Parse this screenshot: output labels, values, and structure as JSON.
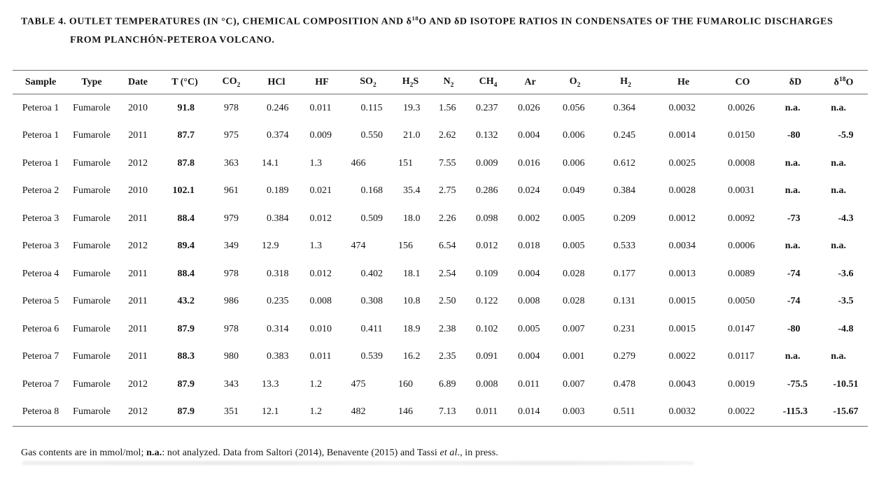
{
  "title": {
    "line1": "TABLE 4. OUTLET TEMPERATURES (IN °C), CHEMICAL COMPOSITION AND δ^{18}O AND δD ISOTOPE RATIOS IN CONDENSATES OF THE FUMAROLIC DISCHARGES",
    "line2": "FROM PLANCHÓN-PETEROA VOLCANO."
  },
  "table": {
    "columns": [
      {
        "key": "sample",
        "label": "Sample",
        "type": "text",
        "align": "left"
      },
      {
        "key": "type",
        "label": "Type",
        "type": "text"
      },
      {
        "key": "date",
        "label": "Date",
        "type": "text"
      },
      {
        "key": "temperature",
        "label": "T (°C)",
        "type": "num",
        "bold": true
      },
      {
        "key": "co2",
        "label": "CO_{2}",
        "type": "num"
      },
      {
        "key": "hcl",
        "label": "HCl",
        "type": "num"
      },
      {
        "key": "hf",
        "label": "HF",
        "type": "num"
      },
      {
        "key": "so2",
        "label": "SO_{2}",
        "type": "num"
      },
      {
        "key": "h2s",
        "label": "H_{2}S",
        "type": "num"
      },
      {
        "key": "n2",
        "label": "N_{2}",
        "type": "num"
      },
      {
        "key": "ch4",
        "label": "CH_{4}",
        "type": "num"
      },
      {
        "key": "ar",
        "label": "Ar",
        "type": "num"
      },
      {
        "key": "o2",
        "label": "O_{2}",
        "type": "num"
      },
      {
        "key": "h2",
        "label": "H_{2}",
        "type": "num"
      },
      {
        "key": "he",
        "label": "He",
        "type": "num"
      },
      {
        "key": "co",
        "label": "CO",
        "type": "num"
      },
      {
        "key": "dD",
        "label": "δD",
        "type": "num",
        "bold": true
      },
      {
        "key": "d18O",
        "label": "δ^{18}O",
        "type": "num",
        "bold": true
      }
    ],
    "rows": [
      [
        "Peteroa 1",
        "Fumarole",
        "2010",
        "91.8",
        "978",
        "0.246",
        "0.011",
        "0.115",
        "19.3",
        "1.56",
        "0.237",
        "0.026",
        "0.056",
        "0.364",
        "0.0032",
        "0.0026",
        "n.a.",
        "n.a."
      ],
      [
        "Peteroa 1",
        "Fumarole",
        "2011",
        "87.7",
        "975",
        "0.374",
        "0.009",
        "0.550",
        "21.0",
        "2.62",
        "0.132",
        "0.004",
        "0.006",
        "0.245",
        "0.0014",
        "0.0150",
        "-80",
        "-5.9"
      ],
      [
        "Peteroa 1",
        "Fumarole",
        "2012",
        "87.8",
        "363",
        "14.1",
        "1.3",
        "466",
        "151",
        "7.55",
        "0.009",
        "0.016",
        "0.006",
        "0.612",
        "0.0025",
        "0.0008",
        "n.a.",
        "n.a."
      ],
      [
        "Peteroa 2",
        "Fumarole",
        "2010",
        "102.1",
        "961",
        "0.189",
        "0.021",
        "0.168",
        "35.4",
        "2.75",
        "0.286",
        "0.024",
        "0.049",
        "0.384",
        "0.0028",
        "0.0031",
        "n.a.",
        "n.a."
      ],
      [
        "Peteroa 3",
        "Fumarole",
        "2011",
        "88.4",
        "979",
        "0.384",
        "0.012",
        "0.509",
        "18.0",
        "2.26",
        "0.098",
        "0.002",
        "0.005",
        "0.209",
        "0.0012",
        "0.0092",
        "-73",
        "-4.3"
      ],
      [
        "Peteroa 3",
        "Fumarole",
        "2012",
        "89.4",
        "349",
        "12.9",
        "1.3",
        "474",
        "156",
        "6.54",
        "0.012",
        "0.018",
        "0.005",
        "0.533",
        "0.0034",
        "0.0006",
        "n.a.",
        "n.a."
      ],
      [
        "Peteroa 4",
        "Fumarole",
        "2011",
        "88.4",
        "978",
        "0.318",
        "0.012",
        "0.402",
        "18.1",
        "2.54",
        "0.109",
        "0.004",
        "0.028",
        "0.177",
        "0.0013",
        "0.0089",
        "-74",
        "-3.6"
      ],
      [
        "Peteroa 5",
        "Fumarole",
        "2011",
        "43.2",
        "986",
        "0.235",
        "0.008",
        "0.308",
        "10.8",
        "2.50",
        "0.122",
        "0.008",
        "0.028",
        "0.131",
        "0.0015",
        "0.0050",
        "-74",
        "-3.5"
      ],
      [
        "Peteroa 6",
        "Fumarole",
        "2011",
        "87.9",
        "978",
        "0.314",
        "0.010",
        "0.411",
        "18.9",
        "2.38",
        "0.102",
        "0.005",
        "0.007",
        "0.231",
        "0.0015",
        "0.0147",
        "-80",
        "-4.8"
      ],
      [
        "Peteroa 7",
        "Fumarole",
        "2011",
        "88.3",
        "980",
        "0.383",
        "0.011",
        "0.539",
        "16.2",
        "2.35",
        "0.091",
        "0.004",
        "0.001",
        "0.279",
        "0.0022",
        "0.0117",
        "n.a.",
        "n.a."
      ],
      [
        "Peteroa 7",
        "Fumarole",
        "2012",
        "87.9",
        "343",
        "13.3",
        "1.2",
        "475",
        "160",
        "6.89",
        "0.008",
        "0.011",
        "0.007",
        "0.478",
        "0.0043",
        "0.0019",
        "-75.5",
        "-10.51"
      ],
      [
        "Peteroa 8",
        "Fumarole",
        "2012",
        "87.9",
        "351",
        "12.1",
        "1.2",
        "482",
        "146",
        "7.13",
        "0.011",
        "0.014",
        "0.003",
        "0.511",
        "0.0032",
        "0.0022",
        "-115.3",
        "-15.67"
      ]
    ]
  },
  "footnote": {
    "parts": [
      {
        "text": "Gas contents are in mmol/mol; "
      },
      {
        "text": "n.a.",
        "bold": true
      },
      {
        "text": ": not analyzed. Data from Saltori (2014), Benavente (2015) and Tassi "
      },
      {
        "text": "et al",
        "italic": true
      },
      {
        "text": "., in press."
      }
    ]
  },
  "colors": {
    "rule": "#6e6e6e",
    "text": "#141414",
    "background": "#ffffff"
  }
}
